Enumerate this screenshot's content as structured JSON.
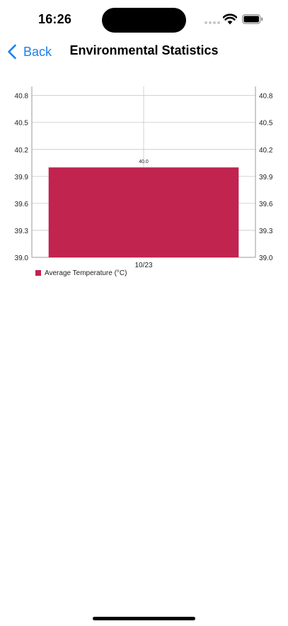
{
  "status_bar": {
    "time": "16:26"
  },
  "nav": {
    "back_label": "Back",
    "title": "Environmental Statistics"
  },
  "colors": {
    "accent": "#1a7ff0",
    "bar": "#c0244f",
    "grid": "#c7c7c7",
    "axis": "#999999"
  },
  "chart_data": {
    "type": "bar",
    "categories": [
      "10/23"
    ],
    "series": [
      {
        "name": "Average Temperature (°C)",
        "values": [
          40.0
        ]
      }
    ],
    "data_labels": [
      "40.0"
    ],
    "ylim": [
      39.0,
      40.9
    ],
    "y_ticks": [
      39.0,
      39.3,
      39.6,
      39.9,
      40.2,
      40.5,
      40.8
    ],
    "y_tick_labels": [
      "39.0",
      "39.3",
      "39.6",
      "39.9",
      "40.2",
      "40.5",
      "40.8"
    ],
    "grid": true,
    "dual_y_axis": true,
    "legend_position": "bottom-left"
  }
}
